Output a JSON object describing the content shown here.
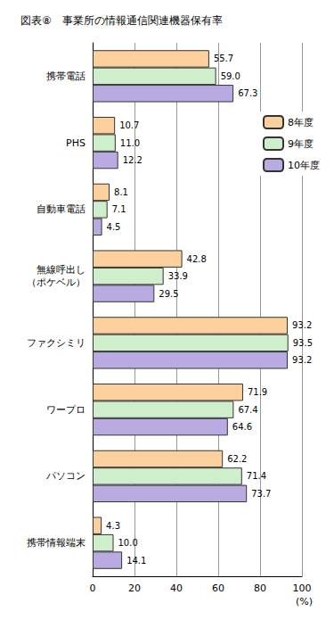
{
  "chart_data": {
    "type": "bar",
    "orientation": "horizontal",
    "title": "図表⑧　事業所の情報通信関連機器保有率",
    "xlabel": "(%)",
    "categories": [
      "携帯電話",
      "PHS",
      "自動車電話",
      "無線呼出し\n（ポケベル）",
      "ファクシミリ",
      "ワープロ",
      "パソコン",
      "携帯情報端末"
    ],
    "series": [
      {
        "name": "8年度",
        "color": "#fbd09c",
        "values": [
          55.7,
          10.7,
          8.1,
          42.8,
          93.2,
          71.9,
          62.2,
          4.3
        ]
      },
      {
        "name": "9年度",
        "color": "#cfeecb",
        "values": [
          59.0,
          11.0,
          7.1,
          33.9,
          93.5,
          67.4,
          71.4,
          10.0
        ]
      },
      {
        "name": "10年度",
        "color": "#b9abe2",
        "values": [
          67.3,
          12.2,
          4.5,
          29.5,
          93.2,
          64.6,
          73.7,
          14.1
        ]
      }
    ],
    "value_labels": [
      [
        "55.7",
        "10.7",
        "8.1",
        "42.8",
        "93.2",
        "71.9",
        "62.2",
        "4.3"
      ],
      [
        "59.0",
        "11.0",
        "7.1",
        "33.9",
        "93.5",
        "67.4",
        "71.4",
        "10.0"
      ],
      [
        "67.3",
        "12.2",
        "4.5",
        "29.5",
        "93.2",
        "64.6",
        "73.7",
        "14.1"
      ]
    ],
    "xlim": [
      0,
      100
    ],
    "xticks": [
      0,
      20,
      40,
      60,
      80,
      100
    ],
    "grid": true,
    "legend": "upper right",
    "data_labels": true
  }
}
